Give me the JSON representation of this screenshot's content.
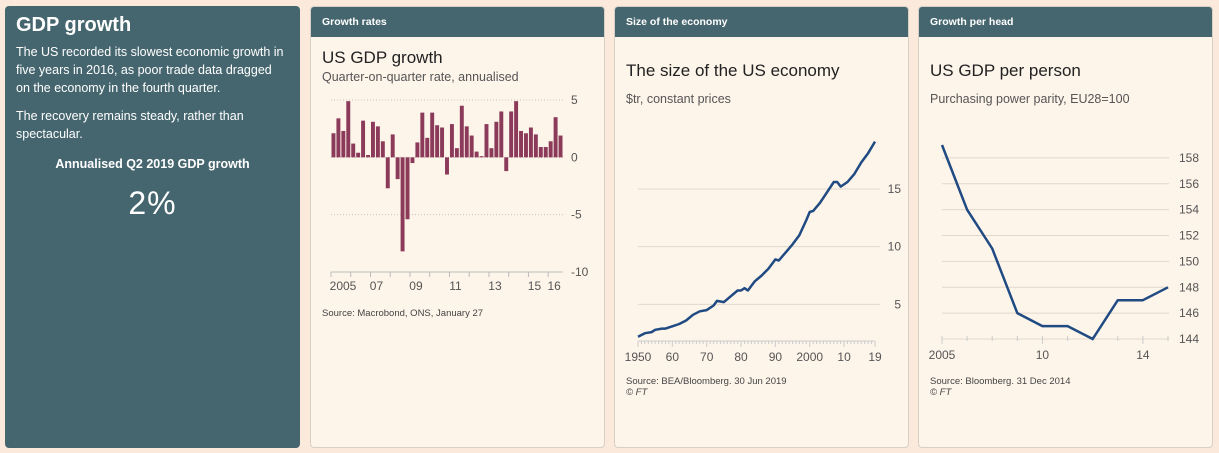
{
  "summary": {
    "title": "GDP growth",
    "paragraphs": [
      "The US recorded its slowest economic growth in five years in 2016, as poor trade data dragged on the economy in the fourth quarter.",
      "The recovery remains steady, rather than spectacular."
    ],
    "kpi_label": "Annualised Q2 2019 GDP growth",
    "kpi_value": "2%"
  },
  "panels": [
    {
      "header": "Growth rates",
      "title": "US GDP growth",
      "subtitle": "Quarter-on-quarter rate, annualised",
      "source": "Source: Macrobond, ONS, January 27",
      "copyright": ""
    },
    {
      "header": "Size of the economy",
      "title": "The size of the US economy",
      "subtitle": "$tr, constant prices",
      "source": "Source: BEA/Bloomberg. 30 Jun 2019",
      "copyright": "© FT"
    },
    {
      "header": "Growth per head",
      "title": "US GDP per person",
      "subtitle": "Purchasing power parity, EU28=100",
      "source": "Source: Bloomberg. 31 Dec 2014",
      "copyright": "© FT"
    }
  ],
  "colors": {
    "bar": "#8c3a5a",
    "line": "#1f4a82",
    "panel_header": "#46666f",
    "panel_bg": "#fdf4ea",
    "page_bg": "#fbeadb"
  },
  "chart_data": [
    {
      "type": "bar",
      "title": "US GDP growth",
      "subtitle": "Quarter-on-quarter rate, annualised",
      "xlabel": "",
      "ylabel": "",
      "ylim": [
        -10,
        5
      ],
      "yticks": [
        5,
        0,
        -5,
        -10
      ],
      "xtick_labels": [
        {
          "label": "2005",
          "index": 0
        },
        {
          "label": "07",
          "index": 8
        },
        {
          "label": "09",
          "index": 16
        },
        {
          "label": "11",
          "index": 24
        },
        {
          "label": "13",
          "index": 32
        },
        {
          "label": "15",
          "index": 40
        },
        {
          "label": "16",
          "index": 44
        }
      ],
      "values": [
        2.1,
        3.4,
        2.3,
        4.9,
        1.2,
        0.4,
        3.2,
        0.2,
        3.1,
        2.7,
        1.4,
        -2.7,
        2.0,
        -1.9,
        -8.2,
        -5.4,
        -0.5,
        1.3,
        3.9,
        1.7,
        3.9,
        2.8,
        2.6,
        -1.5,
        2.9,
        0.8,
        4.5,
        2.7,
        1.9,
        0.5,
        0.1,
        2.9,
        0.8,
        3.1,
        4.0,
        -1.2,
        4.0,
        4.9,
        2.3,
        2.1,
        2.6,
        2.0,
        0.9,
        0.9,
        1.4,
        3.5,
        1.9
      ],
      "grid": true,
      "source": "Source: Macrobond, ONS, January 27"
    },
    {
      "type": "line",
      "title": "The size of the US economy",
      "subtitle": "$tr, constant prices",
      "ylim": [
        2,
        19.5
      ],
      "yticks": [
        5,
        10,
        15
      ],
      "xlim": [
        1950,
        2019
      ],
      "xtick_labels": [
        "1950",
        "60",
        "70",
        "80",
        "90",
        "2000",
        "10",
        "19"
      ],
      "xtick_values": [
        1950,
        1960,
        1970,
        1980,
        1990,
        2000,
        2010,
        2019
      ],
      "x": [
        1950,
        1952,
        1954,
        1955,
        1957,
        1958,
        1960,
        1962,
        1964,
        1966,
        1968,
        1970,
        1972,
        1973,
        1975,
        1977,
        1979,
        1980,
        1981,
        1982,
        1984,
        1986,
        1988,
        1990,
        1991,
        1993,
        1995,
        1997,
        1999,
        2000,
        2001,
        2003,
        2005,
        2007,
        2008,
        2009,
        2011,
        2013,
        2015,
        2017,
        2019
      ],
      "values": [
        2.2,
        2.5,
        2.6,
        2.8,
        2.9,
        2.9,
        3.1,
        3.3,
        3.6,
        4.1,
        4.4,
        4.5,
        4.9,
        5.3,
        5.2,
        5.7,
        6.2,
        6.2,
        6.4,
        6.2,
        7.0,
        7.5,
        8.1,
        8.9,
        8.8,
        9.5,
        10.2,
        11.0,
        12.3,
        13.0,
        13.1,
        13.8,
        14.7,
        15.6,
        15.6,
        15.2,
        15.6,
        16.3,
        17.3,
        18.1,
        19.1
      ],
      "grid": true,
      "source": "Source: BEA/Bloomberg. 30 Jun 2019"
    },
    {
      "type": "line",
      "title": "US GDP per person",
      "subtitle": "Purchasing power parity, EU28=100",
      "ylim": [
        144,
        159
      ],
      "yticks": [
        144,
        146,
        148,
        150,
        152,
        154,
        156,
        158
      ],
      "xtick_labels": [
        {
          "label": "2005",
          "index": 0
        },
        {
          "label": "10",
          "index": 4
        },
        {
          "label": "14",
          "index": 8
        }
      ],
      "values": [
        159,
        154,
        151,
        146,
        145,
        145,
        144,
        147,
        147,
        148
      ],
      "grid": true,
      "source": "Source: Bloomberg. 31 Dec 2014"
    }
  ]
}
